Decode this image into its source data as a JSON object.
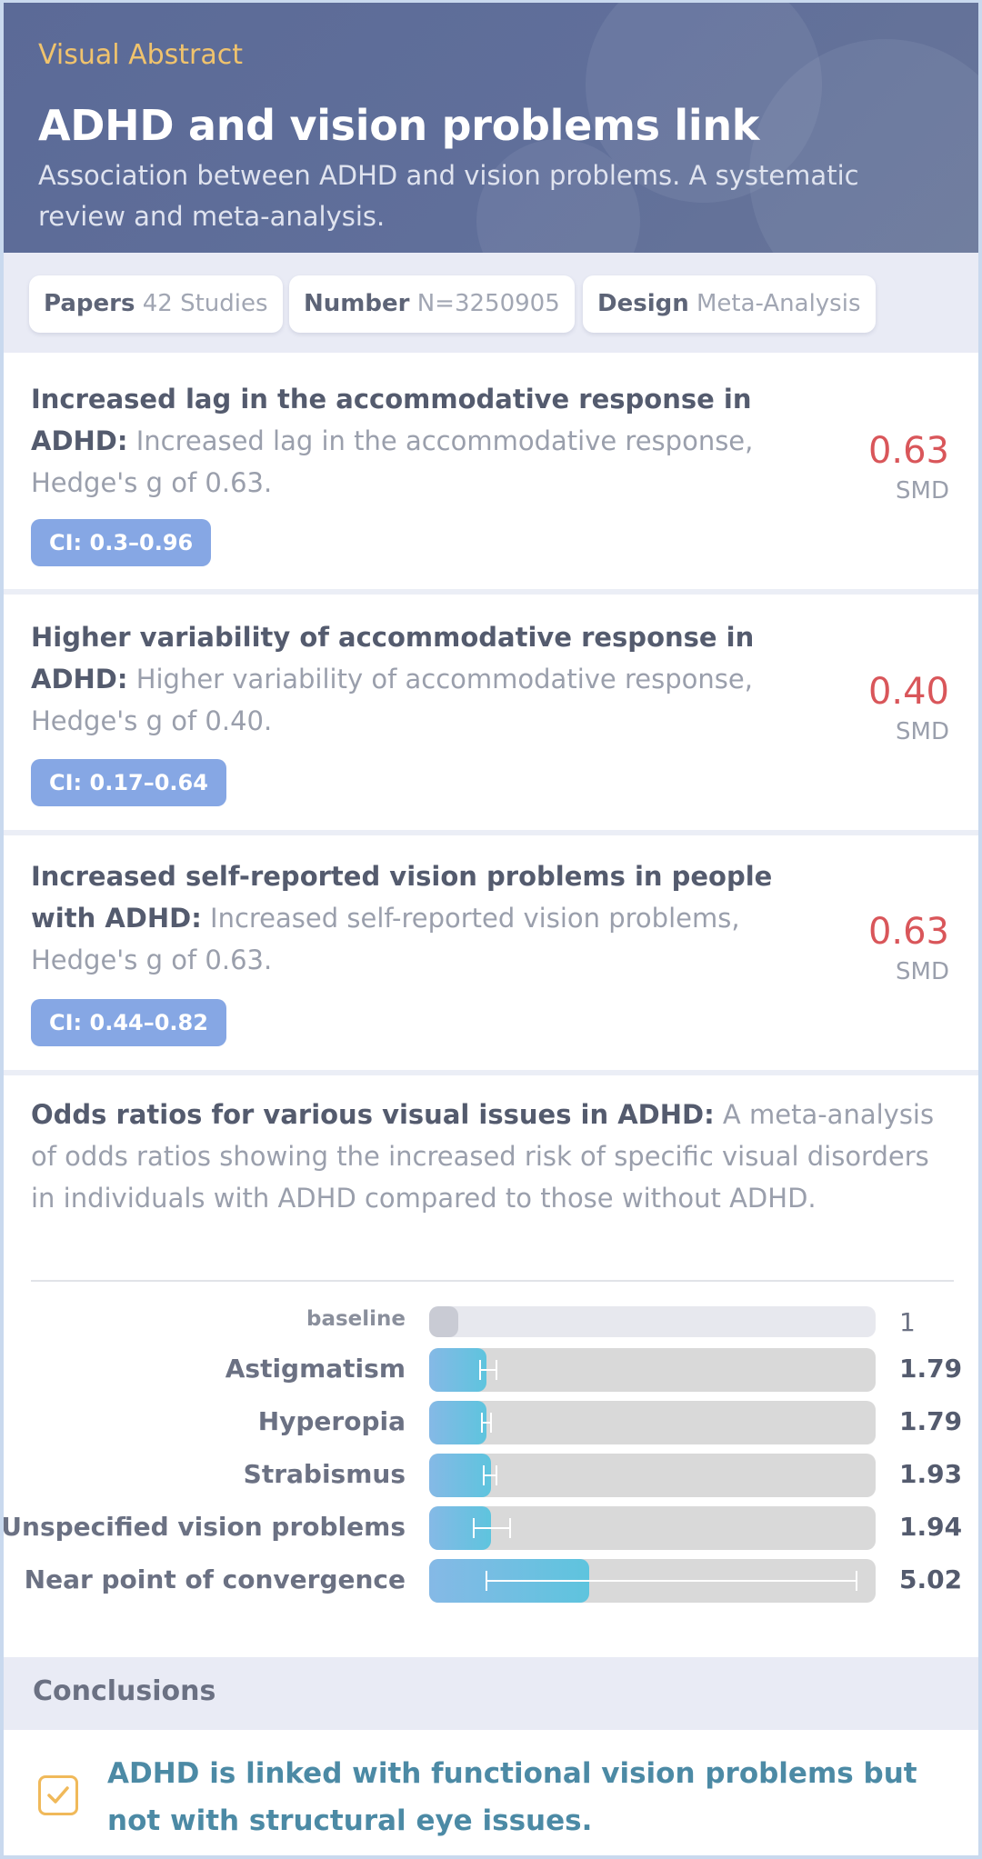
{
  "header": {
    "eyebrow": "Visual Abstract",
    "title": "ADHD and vision problems link",
    "subtitle": "Association between ADHD and vision problems. A systematic review and meta-analysis."
  },
  "stats": [
    {
      "key": "Papers",
      "value": "42 Studies"
    },
    {
      "key": "Number",
      "value": "N=3250905"
    },
    {
      "key": "Design",
      "value": "Meta-Analysis"
    }
  ],
  "findings": [
    {
      "heading": "Increased lag in the accommodative response in ADHD:",
      "body": "Increased lag in the accommodative response, Hedge's g of 0.63.",
      "ci": "CI: 0.3–0.96",
      "value": "0.63",
      "unit": "SMD"
    },
    {
      "heading": "Higher variability of accommodative response in ADHD:",
      "body": "Higher variability of accommodative response, Hedge's g of 0.40.",
      "ci": "CI: 0.17–0.64",
      "value": "0.40",
      "unit": "SMD"
    },
    {
      "heading": "Increased self-reported vision problems in people with ADHD:",
      "body": "Increased self-reported vision problems, Hedge's g of 0.63.",
      "ci": "CI: 0.44–0.82",
      "value": "0.63",
      "unit": "SMD"
    }
  ],
  "odds": {
    "heading": "Odds ratios for various visual issues in ADHD:",
    "body": "A meta-analysis of odds ratios showing the increased risk of specific visual disorders in individuals with ADHD compared to those without ADHD."
  },
  "chart_data": {
    "type": "bar",
    "orientation": "horizontal",
    "categories": [
      "baseline",
      "Astigmatism",
      "Hyperopia",
      "Strabismus",
      "Unspecified vision problems",
      "Near point of convergence"
    ],
    "values": [
      1,
      1.79,
      1.79,
      1.93,
      1.94,
      5.02
    ],
    "value_labels": [
      "1",
      "1.79",
      "1.79",
      "1.93",
      "1.94",
      "5.02"
    ],
    "ci_low": [
      null,
      1.6,
      1.65,
      1.7,
      1.4,
      1.8
    ],
    "ci_high": [
      null,
      2.1,
      1.95,
      2.1,
      2.55,
      13.4
    ],
    "xlim": [
      0,
      14
    ]
  },
  "conclusions": {
    "heading": "Conclusions",
    "text": "ADHD is linked with functional vision problems but not with structural eye issues."
  },
  "colors": {
    "header_bg": "#5b6a97",
    "eyebrow": "#f0c36d",
    "metric": "#d9565a",
    "ci_badge": "#86a7e4",
    "bar_fill": "#5ec4de",
    "conclusion_text": "#4c8aa5"
  }
}
